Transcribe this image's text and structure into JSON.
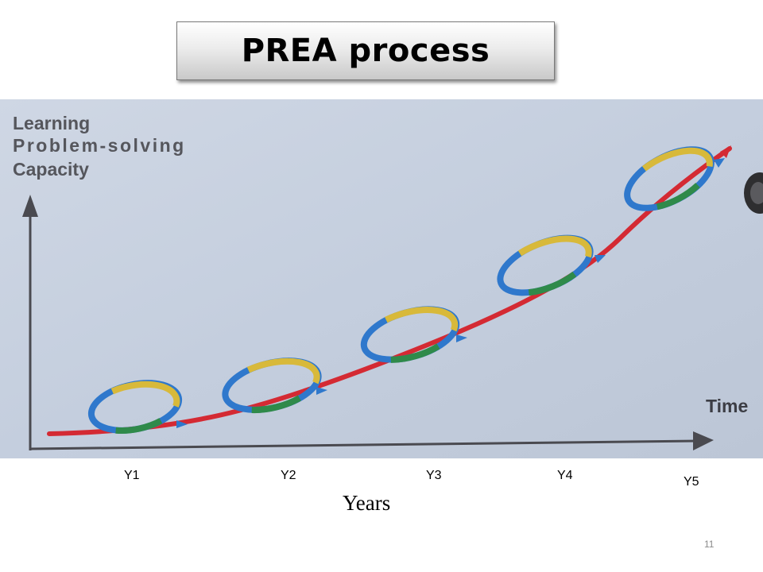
{
  "slide": {
    "title": "PREA process",
    "page_number": "11"
  },
  "photo": {
    "y_axis_label_lines": [
      "Learning",
      "Problem-solving",
      "Capacity"
    ],
    "x_axis_label": "Time",
    "colors": {
      "background": "#c9d2e0",
      "axis": "#4a4a50",
      "curve": "#d42a33",
      "loop_blue": "#2f78cc",
      "loop_yellow": "#d8b93a",
      "loop_green": "#2f8a4a"
    }
  },
  "years": {
    "labels": [
      "Y1",
      "Y2",
      "Y3",
      "Y4",
      "Y5"
    ],
    "caption": "Years"
  }
}
